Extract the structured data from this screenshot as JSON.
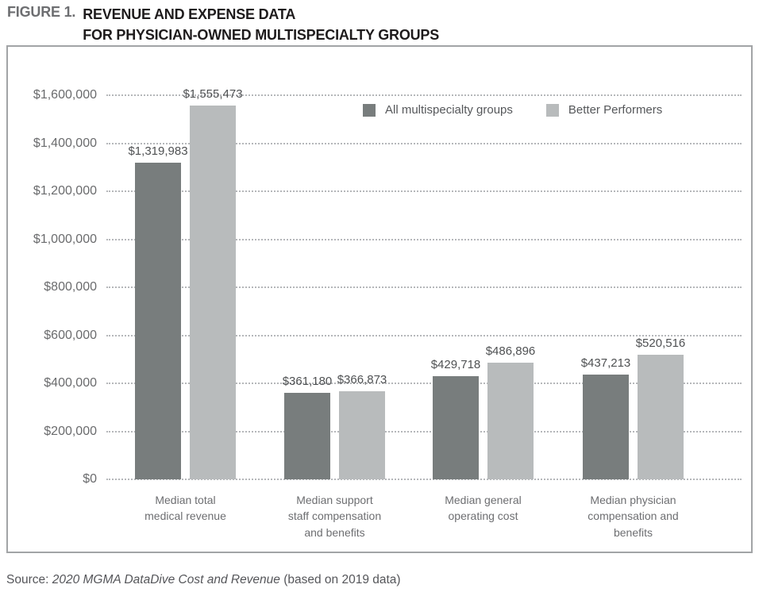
{
  "title": {
    "figure_label": "FIGURE 1.",
    "line1": "REVENUE AND EXPENSE DATA",
    "line2": "FOR PHYSICIAN-OWNED MULTISPECIALTY GROUPS"
  },
  "source": {
    "prefix": "Source: ",
    "citation": "2020 MGMA DataDive Cost and Revenue",
    "suffix": " (based on 2019 data)"
  },
  "colors": {
    "all_groups_series": "#787d7d",
    "better_performers_series": "#b8bbbc",
    "figure_label_gray": "#6d6e71",
    "title_black": "#1e1b1c",
    "axis_text": "#6a6b6d",
    "value_text": "#4f5153",
    "gridline": "#b5b7ba",
    "chart_border": "#a2a4a6",
    "source_text": "#55565a"
  },
  "chart_data": {
    "type": "bar",
    "title": "FIGURE 1. REVENUE AND EXPENSE DATA FOR PHYSICIAN-OWNED MULTISPECIALTY GROUPS",
    "categories": [
      "Median total medical revenue",
      "Median support staff compensation and benefits",
      "Median general operating cost",
      "Median physician compensation and benefits"
    ],
    "category_lines": [
      [
        "Median total",
        "medical revenue"
      ],
      [
        "Median support",
        "staff compensation",
        "and benefits"
      ],
      [
        "Median general",
        "operating cost"
      ],
      [
        "Median physician",
        "compensation and",
        "benefits"
      ]
    ],
    "series": [
      {
        "name": "All multispecialty groups",
        "color": "#787d7d",
        "values": [
          1319983,
          361180,
          429718,
          437213
        ],
        "value_labels": [
          "$1,319,983",
          "$361,180",
          "$429,718",
          "$437,213"
        ]
      },
      {
        "name": "Better Performers",
        "color": "#b8bbbc",
        "values": [
          1555473,
          366873,
          486896,
          520516
        ],
        "value_labels": [
          "$1,555,473",
          "$366,873",
          "$486,896",
          "$520,516"
        ]
      }
    ],
    "xlabel": "",
    "ylabel": "",
    "ylim": [
      0,
      1600000
    ],
    "y_tick_values": [
      1600000,
      1400000,
      1200000,
      1000000,
      800000,
      600000,
      400000,
      200000,
      0
    ],
    "y_tick_labels": [
      "$1,600,000",
      "$1,400,000",
      "$1,200,000",
      "$1,000,000",
      "$800,000",
      "$600,000",
      "$400,000",
      "$200,000",
      "$0"
    ],
    "grid": "horizontal dotted",
    "legend_position": "inside plot, upper center-right"
  }
}
